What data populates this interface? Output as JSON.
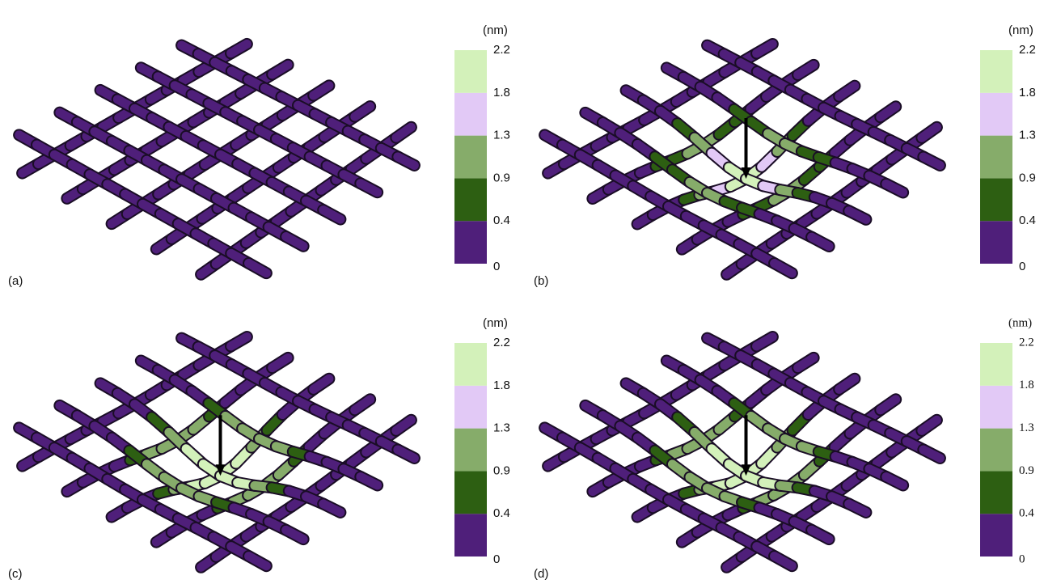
{
  "panels": [
    {
      "label": "(a)",
      "colorbar": {
        "unit": "(nm)",
        "ticks": [
          "0",
          "0.4",
          "0.9",
          "1.3",
          "1.8",
          "2.2"
        ],
        "colors": [
          "#4f1f7a",
          "#2d5f12",
          "#86ac6a",
          "#e2c9f6",
          "#d3f1ba"
        ]
      }
    },
    {
      "label": "(b)",
      "colorbar": {
        "unit": "(nm)",
        "ticks": [
          "0",
          "0.4",
          "0.9",
          "1.3",
          "1.8",
          "2.2"
        ],
        "colors": [
          "#4f1f7a",
          "#2d5f12",
          "#86ac6a",
          "#e2c9f6",
          "#d3f1ba"
        ]
      }
    },
    {
      "label": "(c)",
      "colorbar": {
        "unit": "(nm)",
        "ticks": [
          "0",
          "0.4",
          "0.9",
          "1.3",
          "1.8",
          "2.2"
        ],
        "colors": [
          "#4f1f7a",
          "#2d5f12",
          "#86ac6a",
          "#e2c9f6",
          "#d3f1ba"
        ]
      }
    },
    {
      "label": "(d)",
      "colorbar": {
        "unit": "(nm)",
        "ticks": [
          "0",
          "0.4",
          "0.9",
          "1.3",
          "1.8",
          "2.2"
        ],
        "colors": [
          "#4f1f7a",
          "#2d5f12",
          "#86ac6a",
          "#e2c9f6",
          "#d3f1ba"
        ]
      }
    }
  ]
}
